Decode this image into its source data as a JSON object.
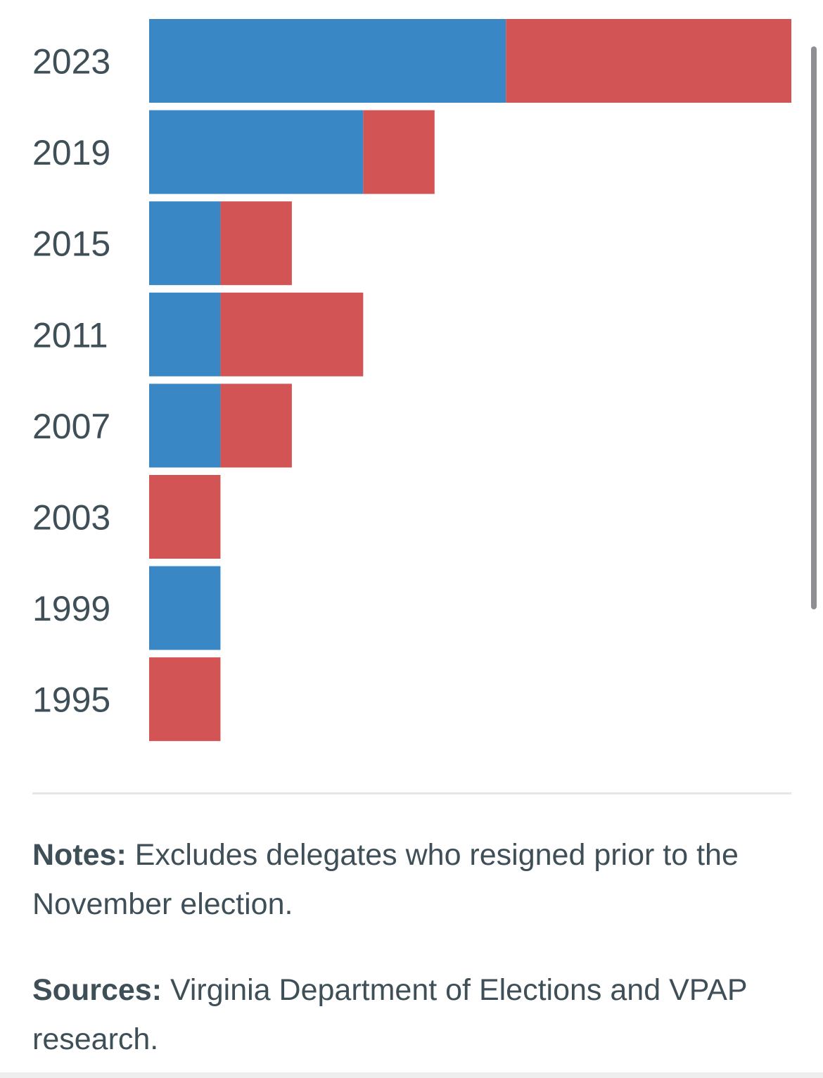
{
  "chart_data": {
    "type": "bar",
    "orientation": "horizontal",
    "stacked": true,
    "categories": [
      "2023",
      "2019",
      "2015",
      "2011",
      "2007",
      "2003",
      "1999",
      "1995"
    ],
    "series": [
      {
        "color": "#3a87c6",
        "values": [
          5,
          3,
          1,
          1,
          1,
          0,
          1,
          0
        ]
      },
      {
        "color": "#d35454",
        "values": [
          4,
          1,
          1,
          2,
          1,
          1,
          0,
          1
        ]
      }
    ],
    "xlim": [
      0,
      9
    ],
    "grid": false,
    "legend": "none"
  },
  "notes": {
    "label": "Notes:",
    "text": " Excludes delegates who resigned prior to the November election."
  },
  "sources": {
    "label": "Sources:",
    "text": " Virginia Department of Elections and VPAP research."
  }
}
